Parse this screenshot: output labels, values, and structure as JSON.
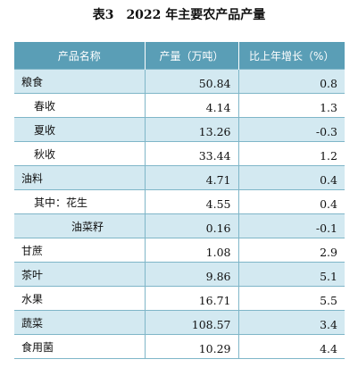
{
  "header": {
    "title": "表3　2022 年主要农产品产量"
  },
  "table": {
    "columns": [
      "产品名称",
      "产量（万吨）",
      "比上年增长（%）"
    ],
    "rows": [
      [
        "粮食",
        50.84,
        0.8
      ],
      [
        "春收",
        4.14,
        1.3
      ],
      [
        "夏收",
        13.26,
        -0.3
      ],
      [
        "秋收",
        33.44,
        1.2
      ],
      [
        "油料",
        4.71,
        0.4
      ],
      [
        "其中：花生",
        4.55,
        0.4
      ],
      [
        "油菜籽",
        0.16,
        -0.1
      ],
      [
        "甘蔗",
        1.08,
        2.9
      ],
      [
        "茶叶",
        9.86,
        5.1
      ],
      [
        "水果",
        16.71,
        5.5
      ],
      [
        "蔬菜",
        108.57,
        3.4
      ],
      [
        "食用菌",
        10.29,
        4.4
      ]
    ]
  }
}
